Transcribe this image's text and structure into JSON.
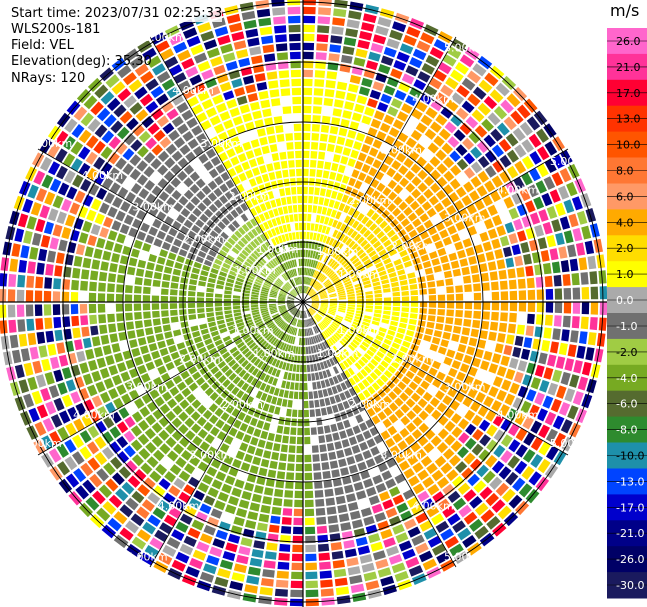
{
  "header": {
    "start_time": "Start time: 2023/07/31 02:25:33",
    "site": "WLS200s-181",
    "field": "Field: VEL",
    "elevation": "Elevation(deg): 35.30",
    "nrays": "NRays: 120"
  },
  "chart_data": {
    "type": "heatmap",
    "projection": "polar-ppi",
    "title": "",
    "rays": 120,
    "range_rings_km": [
      1,
      2,
      3,
      4,
      5
    ],
    "range_ring_labels": [
      "1.00km",
      "2.00km",
      "3.00km",
      "4.00km",
      "5.00km"
    ],
    "label_bearings_deg": [
      32,
      62,
      118,
      148,
      212,
      242,
      302,
      332
    ],
    "max_range_km": 5.1,
    "colorbar": {
      "unit": "m/s",
      "tick_labels": [
        "26.0",
        "21.0",
        "17.0",
        "13.0",
        "10.0",
        "8.0",
        "6.0",
        "4.0",
        "2.0",
        "1.0",
        "0.0",
        "-1.0",
        "-2.0",
        "-4.0",
        "-6.0",
        "-8.0",
        "-10.0",
        "-13.0",
        "-17.0",
        "-21.0",
        "-26.0",
        "-30.0"
      ],
      "colors": [
        "#ff66cc",
        "#ff3399",
        "#ff0033",
        "#ff3300",
        "#ff5500",
        "#ff7733",
        "#ff9966",
        "#ffaa00",
        "#ffdd00",
        "#ffff00",
        "#aaaaaa",
        "#707070",
        "#a0cc44",
        "#77aa22",
        "#556b2f",
        "#2e8b2e",
        "#1e90aa",
        "#0044ff",
        "#0000cc",
        "#000088",
        "#000066",
        "#1a1a5e"
      ],
      "light_text_indices": [
        10,
        11,
        13,
        14,
        15,
        17,
        18,
        19,
        20,
        21
      ]
    },
    "velocity_pattern": [
      {
        "bearing_from": 20,
        "bearing_to": 150,
        "near_km": 1.9,
        "color": "#ffaa00"
      },
      {
        "bearing_from": 330,
        "bearing_to": 360,
        "near_km": 2.8,
        "color": "#ffff00"
      },
      {
        "bearing_from": 0,
        "bearing_to": 20,
        "near_km": 2.8,
        "color": "#ffff00"
      },
      {
        "bearing_from": 90,
        "bearing_to": 150,
        "near_km": 0.3,
        "color": "#ffff00"
      },
      {
        "bearing_from": 150,
        "bearing_to": 175,
        "near_km": 0.3,
        "color": "#707070"
      },
      {
        "bearing_from": 175,
        "bearing_to": 290,
        "near_km": 0.3,
        "color": "#77aa22"
      },
      {
        "bearing_from": 290,
        "bearing_to": 330,
        "near_km": 1.5,
        "color": "#707070"
      }
    ]
  }
}
